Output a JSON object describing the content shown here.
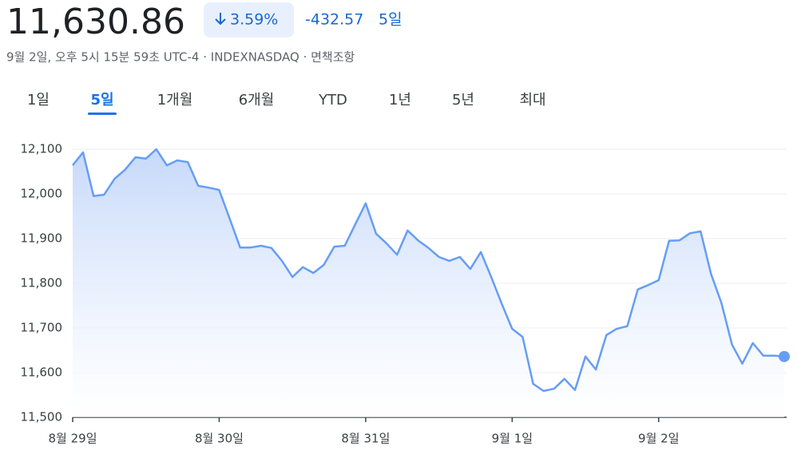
{
  "header": {
    "price": "11,630.86",
    "change_percent": "3.59%",
    "change": "-432.57",
    "period": "5일",
    "subtitle": "9월 2일, 오후 5시 15분 59초 UTC-4 · INDEXNASDAQ · 면책조항"
  },
  "tabs": [
    "1일",
    "5일",
    "1개월",
    "6개월",
    "YTD",
    "1년",
    "5년",
    "최대"
  ],
  "selected_tab": 1,
  "chart_data": {
    "type": "line",
    "color": "#669df6",
    "grid": true,
    "x": [
      0,
      0.071,
      0.143,
      0.214,
      0.286,
      0.357,
      0.429,
      0.5,
      0.571,
      0.643,
      0.714,
      0.786,
      0.857,
      0.929,
      1,
      1.071,
      1.143,
      1.214,
      1.286,
      1.357,
      1.429,
      1.5,
      1.571,
      1.643,
      1.714,
      1.786,
      1.857,
      1.929,
      2,
      2.071,
      2.143,
      2.214,
      2.286,
      2.357,
      2.429,
      2.5,
      2.571,
      2.643,
      2.714,
      2.786,
      2.857,
      2.929,
      3,
      3.071,
      3.143,
      3.214,
      3.286,
      3.357,
      3.429,
      3.5,
      3.571,
      3.643,
      3.714,
      3.786,
      3.857,
      3.929,
      4,
      4.071,
      4.143,
      4.214,
      4.286,
      4.357,
      4.429,
      4.5,
      4.571,
      4.643,
      4.714,
      4.786,
      4.857
    ],
    "values": [
      12064,
      12093,
      11995,
      11998,
      12034,
      12054,
      12082,
      12079,
      12100,
      12064,
      12075,
      12071,
      12018,
      12014,
      12009,
      11945,
      11880,
      11880,
      11884,
      11879,
      11850,
      11814,
      11836,
      11823,
      11841,
      11882,
      11884,
      11932,
      11979,
      11911,
      11889,
      11864,
      11918,
      11896,
      11879,
      11859,
      11850,
      11859,
      11832,
      11870,
      11814,
      11754,
      11698,
      11680,
      11575,
      11559,
      11564,
      11586,
      11561,
      11636,
      11607,
      11684,
      11698,
      11704,
      11786,
      11796,
      11807,
      11895,
      11896,
      11912,
      11916,
      11821,
      11755,
      11663,
      11620,
      11666,
      11638,
      11638,
      11636
    ],
    "xlim": [
      0,
      4.857
    ],
    "ylim": [
      11500,
      12100
    ],
    "yticks": [
      {
        "value": 11500,
        "label": "11,500"
      },
      {
        "value": 11600,
        "label": "11,600"
      },
      {
        "value": 11700,
        "label": "11,700"
      },
      {
        "value": 11800,
        "label": "11,800"
      },
      {
        "value": 11900,
        "label": "11,900"
      },
      {
        "value": 12000,
        "label": "12,000"
      },
      {
        "value": 12100,
        "label": "12,100"
      }
    ],
    "xticks": [
      {
        "value": 0,
        "label": "8월 29일"
      },
      {
        "value": 1,
        "label": "8월 30일"
      },
      {
        "value": 2,
        "label": "8월 31일"
      },
      {
        "value": 3,
        "label": "9월 1일"
      },
      {
        "value": 4,
        "label": "9월 2일"
      }
    ]
  }
}
